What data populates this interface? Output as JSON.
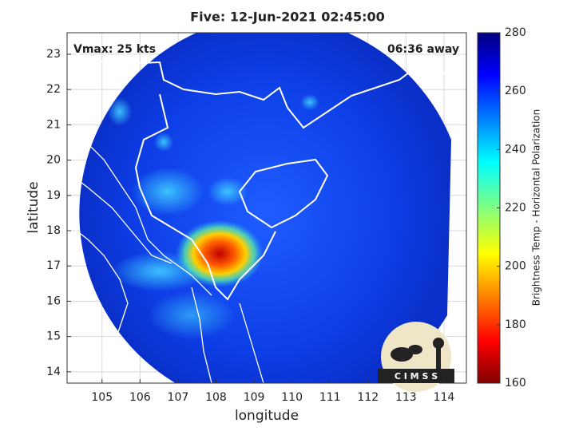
{
  "chart_data": {
    "type": "map",
    "title": "Five: 12-Jun-2021 02:45:00",
    "xlabel": "longitude",
    "ylabel": "latitude",
    "xlim": [
      104.08,
      114.59
    ],
    "ylim": [
      13.68,
      23.61
    ],
    "xticks": [
      105,
      106,
      107,
      108,
      109,
      110,
      111,
      112,
      113,
      114
    ],
    "yticks": [
      14,
      15,
      16,
      17,
      18,
      19,
      20,
      21,
      22,
      23
    ],
    "grid": true,
    "annotations": [
      "Vmax: 25 kts",
      "06:36 away"
    ],
    "colorbar": {
      "label": "Brightness Temp - Horizontal Polarization",
      "lim": [
        160,
        280
      ],
      "ticks": [
        160,
        180,
        200,
        220,
        240,
        260,
        280
      ]
    },
    "logo": "C I M S S"
  }
}
